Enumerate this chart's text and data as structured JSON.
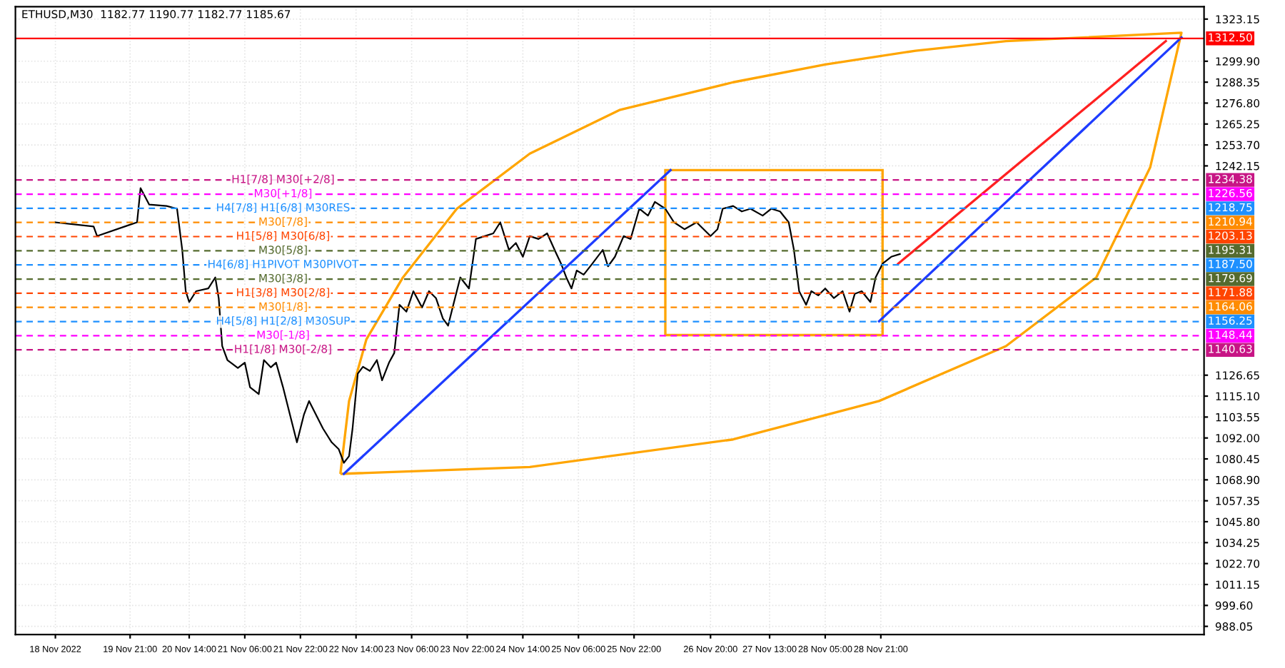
{
  "chart_data": {
    "type": "line",
    "title": "ETHUSD,M30  1182.77 1190.77 1182.77 1185.67",
    "series": [
      {
        "color": "#000000",
        "x": [
          "2022-11-18T23:30",
          "2022-11-19T10:30",
          "2022-11-19T11:30",
          "2022-11-19T20:30",
          "2022-11-19T23:00",
          "2022-11-20T00:00",
          "2022-11-20T02:30",
          "2022-11-20T07:30",
          "2022-11-20T10:30",
          "2022-11-20T12:00",
          "2022-11-20T13:00",
          "2022-11-20T14:00",
          "2022-11-20T16:00",
          "2022-11-20T19:30",
          "2022-11-20T21:30",
          "2022-11-20T22:30",
          "2022-11-20T23:30",
          "2022-11-21T01:00",
          "2022-11-21T04:00",
          "2022-11-21T06:00",
          "2022-11-21T07:30",
          "2022-11-21T10:00",
          "2022-11-21T11:30",
          "2022-11-21T13:30",
          "2022-11-21T15:00",
          "2022-11-21T17:00",
          "2022-11-21T19:00",
          "2022-11-21T21:00",
          "2022-11-21T23:00",
          "2022-11-22T00:30",
          "2022-11-22T02:30",
          "2022-11-22T04:30",
          "2022-11-22T07:00",
          "2022-11-22T09:00",
          "2022-11-22T10:30",
          "2022-11-22T12:00",
          "2022-11-22T13:00",
          "2022-11-22T14:30",
          "2022-11-22T16:00",
          "2022-11-22T18:00",
          "2022-11-22T20:00",
          "2022-11-22T21:30",
          "2022-11-22T23:30",
          "2022-11-23T01:00",
          "2022-11-23T02:30",
          "2022-11-23T04:30",
          "2022-11-23T06:30",
          "2022-11-23T09:00",
          "2022-11-23T11:00",
          "2022-11-23T13:00",
          "2022-11-23T15:00",
          "2022-11-23T16:30",
          "2022-11-23T18:00",
          "2022-11-23T20:00",
          "2022-11-23T22:30",
          "2022-11-24T00:30",
          "2022-11-24T03:00",
          "2022-11-24T05:30",
          "2022-11-24T07:30",
          "2022-11-24T10:00",
          "2022-11-24T12:00",
          "2022-11-24T14:00",
          "2022-11-24T16:00",
          "2022-11-24T18:30",
          "2022-11-24T21:00",
          "2022-11-24T23:30",
          "2022-11-25T01:00",
          "2022-11-25T02:30",
          "2022-11-25T04:00",
          "2022-11-25T05:30",
          "2022-11-25T07:30",
          "2022-11-25T10:00",
          "2022-11-25T13:00",
          "2022-11-25T14:30",
          "2022-11-25T16:30",
          "2022-11-25T19:00",
          "2022-11-25T21:00",
          "2022-11-25T23:30",
          "2022-11-26T02:00",
          "2022-11-26T04:00",
          "2022-11-26T07:00",
          "2022-11-26T09:30",
          "2022-11-26T12:30",
          "2022-11-26T16:00",
          "2022-11-26T20:00",
          "2022-11-26T22:00",
          "2022-11-26T23:30",
          "2022-11-27T02:30",
          "2022-11-27T05:00",
          "2022-11-27T07:30",
          "2022-11-27T11:00",
          "2022-11-27T13:30",
          "2022-11-27T16:00",
          "2022-11-27T18:30",
          "2022-11-27T20:00",
          "2022-11-27T21:30",
          "2022-11-27T23:30",
          "2022-11-28T01:00",
          "2022-11-28T03:00",
          "2022-11-28T05:00",
          "2022-11-28T07:30",
          "2022-11-28T10:00",
          "2022-11-28T12:00",
          "2022-11-28T13:30",
          "2022-11-28T15:30",
          "2022-11-28T18:00",
          "2022-11-28T19:30",
          "2022-11-28T21:30",
          "2022-11-29T00:00",
          "2022-11-29T02:30"
        ],
        "values": [
          1211.0,
          1208.7,
          1203.4,
          1209.4,
          1211.0,
          1229.9,
          1220.8,
          1220.0,
          1218.5,
          1195.8,
          1173.0,
          1167.0,
          1173.0,
          1174.5,
          1180.6,
          1169.0,
          1142.7,
          1135.0,
          1130.6,
          1133.6,
          1120.0,
          1116.2,
          1135.0,
          1131.0,
          1133.6,
          1120.0,
          1104.8,
          1089.6,
          1104.8,
          1112.4,
          1104.8,
          1097.2,
          1089.6,
          1085.9,
          1078.3,
          1082.0,
          1097.2,
          1127.5,
          1131.3,
          1129.0,
          1135.0,
          1123.8,
          1133.6,
          1138.9,
          1165.5,
          1161.7,
          1173.0,
          1164.0,
          1173.0,
          1169.2,
          1157.9,
          1154.0,
          1165.5,
          1180.6,
          1174.5,
          1201.8,
          1203.4,
          1204.9,
          1211.0,
          1195.8,
          1199.6,
          1192.0,
          1203.4,
          1201.8,
          1204.9,
          1194.3,
          1188.2,
          1180.6,
          1174.5,
          1184.4,
          1182.1,
          1188.2,
          1195.8,
          1186.7,
          1192.0,
          1203.4,
          1201.8,
          1218.5,
          1214.7,
          1222.3,
          1218.5,
          1211.0,
          1207.2,
          1211.0,
          1203.4,
          1207.2,
          1218.5,
          1220.0,
          1217.0,
          1218.5,
          1214.7,
          1218.5,
          1217.0,
          1211.0,
          1195.8,
          1173.0,
          1165.5,
          1173.0,
          1170.7,
          1174.5,
          1169.2,
          1173.0,
          1161.7,
          1171.5,
          1173.0,
          1167.0,
          1180.6,
          1188.2,
          1192.0,
          1193.5
        ]
      },
      {
        "color": "#1e3cff",
        "x": [
          "2022-11-22T10:30",
          "2022-11-26T08:30"
        ],
        "values": [
          1072.2,
          1239.8
        ]
      },
      {
        "color": "#1e3cff",
        "x": [
          "2022-11-28T20:30",
          "2022-12-02T11:30"
        ],
        "values": [
          1156.4,
          1313.0
        ]
      },
      {
        "color": "#ff2020",
        "x": [
          "2022-11-29T02:00",
          "2022-12-02T07:00"
        ],
        "values": [
          1188.2,
          1311.0
        ]
      }
    ],
    "xlim": [
      "2022-11-18T12:00",
      "2022-12-02T18:00"
    ],
    "xticks": [
      {
        "value": "2022-11-18T23:30",
        "label": "18 Nov 2022"
      },
      {
        "value": "2022-11-19T21:00",
        "label": "19 Nov 21:00"
      },
      {
        "value": "2022-11-20T14:00",
        "label": "20 Nov 14:00"
      },
      {
        "value": "2022-11-21T06:00",
        "label": "21 Nov 06:00"
      },
      {
        "value": "2022-11-21T22:00",
        "label": "21 Nov 22:00"
      },
      {
        "value": "2022-11-22T14:00",
        "label": "22 Nov 14:00"
      },
      {
        "value": "2022-11-23T06:00",
        "label": "23 Nov 06:00"
      },
      {
        "value": "2022-11-23T22:00",
        "label": "23 Nov 22:00"
      },
      {
        "value": "2022-11-24T14:00",
        "label": "24 Nov 14:00"
      },
      {
        "value": "2022-11-25T06:00",
        "label": "25 Nov 06:00"
      },
      {
        "value": "2022-11-25T22:00",
        "label": "25 Nov 22:00"
      },
      {
        "value": "2022-11-26T20:00",
        "label": "26 Nov 20:00"
      },
      {
        "value": "2022-11-27T13:00",
        "label": "27 Nov 13:00"
      },
      {
        "value": "2022-11-28T05:00",
        "label": "28 Nov 05:00"
      },
      {
        "value": "2022-11-28T21:00",
        "label": "28 Nov 21:00"
      }
    ],
    "ylim": [
      983.5,
      1330.0
    ],
    "yticks": [
      {
        "value": 988.05,
        "label": "988.05"
      },
      {
        "value": 999.6,
        "label": "999.60"
      },
      {
        "value": 1011.15,
        "label": "1011.15"
      },
      {
        "value": 1022.7,
        "label": "1022.70"
      },
      {
        "value": 1034.25,
        "label": "1034.25"
      },
      {
        "value": 1045.8,
        "label": "1045.80"
      },
      {
        "value": 1057.35,
        "label": "1057.35"
      },
      {
        "value": 1068.9,
        "label": "1068.90"
      },
      {
        "value": 1080.45,
        "label": "1080.45"
      },
      {
        "value": 1092.0,
        "label": "1092.00"
      },
      {
        "value": 1103.55,
        "label": "1103.55"
      },
      {
        "value": 1115.1,
        "label": "1115.10"
      },
      {
        "value": 1126.65,
        "label": "1126.65"
      },
      {
        "value": 1242.15,
        "label": "1242.15"
      },
      {
        "value": 1253.7,
        "label": "1253.70"
      },
      {
        "value": 1265.25,
        "label": "1265.25"
      },
      {
        "value": 1276.8,
        "label": "1276.80"
      },
      {
        "value": 1288.35,
        "label": "1288.35"
      },
      {
        "value": 1299.9,
        "label": "1299.90"
      },
      {
        "value": 1323.15,
        "label": "1323.15"
      }
    ],
    "ref_lines": [
      {
        "axis": "y",
        "value": 1312.5,
        "label": "1312.50",
        "color": "#ff0000",
        "line_style": "solid"
      },
      {
        "axis": "y",
        "value": 1234.38,
        "label": "1234.38",
        "color": "#c71585",
        "line_style": "dashed"
      },
      {
        "axis": "y",
        "value": 1226.56,
        "label": "1226.56",
        "color": "#ff00ff",
        "line_style": "dashed"
      },
      {
        "axis": "y",
        "value": 1218.75,
        "label": "1218.75",
        "color": "#1e90ff",
        "line_style": "dashed"
      },
      {
        "axis": "y",
        "value": 1210.94,
        "label": "1210.94",
        "color": "#ff8c00",
        "line_style": "dashed"
      },
      {
        "axis": "y",
        "value": 1203.13,
        "label": "1203.13",
        "color": "#ff4500",
        "line_style": "dashed"
      },
      {
        "axis": "y",
        "value": 1195.31,
        "label": "1195.31",
        "color": "#556b2f",
        "line_style": "dashed"
      },
      {
        "axis": "y",
        "value": 1187.5,
        "label": "1187.50",
        "color": "#1e90ff",
        "line_style": "dashed"
      },
      {
        "axis": "y",
        "value": 1179.69,
        "label": "1179.69",
        "color": "#556b2f",
        "line_style": "dashed"
      },
      {
        "axis": "y",
        "value": 1171.88,
        "label": "1171.88",
        "color": "#ff4500",
        "line_style": "dashed"
      },
      {
        "axis": "y",
        "value": 1164.06,
        "label": "1164.06",
        "color": "#ff8c00",
        "line_style": "dashed"
      },
      {
        "axis": "y",
        "value": 1156.25,
        "label": "1156.25",
        "color": "#1e90ff",
        "line_style": "dashed"
      },
      {
        "axis": "y",
        "value": 1148.44,
        "label": "1148.44",
        "color": "#ff00ff",
        "line_style": "dashed"
      },
      {
        "axis": "y",
        "value": 1140.63,
        "label": "1140.63",
        "color": "#c71585",
        "line_style": "dashed"
      }
    ],
    "annotations": [
      {
        "text": "H1[7/8] M30[+2/8]",
        "x": "2022-11-21T17:00",
        "y": 1234.38
      },
      {
        "text": "M30[+1/8]",
        "x": "2022-11-21T17:00",
        "y": 1226.56
      },
      {
        "text": "H4[7/8] H1[6/8] M30RES",
        "x": "2022-11-21T17:00",
        "y": 1218.75
      },
      {
        "text": "M30[7/8]",
        "x": "2022-11-21T17:00",
        "y": 1210.94
      },
      {
        "text": "H1[5/8] M30[6/8]",
        "x": "2022-11-21T17:00",
        "y": 1203.13
      },
      {
        "text": "M30[5/8]",
        "x": "2022-11-21T17:00",
        "y": 1195.31
      },
      {
        "text": "H4[6/8] H1PIVOT M30PIVOT",
        "x": "2022-11-21T17:00",
        "y": 1187.5
      },
      {
        "text": "M30[3/8]",
        "x": "2022-11-21T17:00",
        "y": 1179.69
      },
      {
        "text": "H1[3/8] M30[2/8]",
        "x": "2022-11-21T17:00",
        "y": 1171.88
      },
      {
        "text": "M30[1/8]",
        "x": "2022-11-21T17:00",
        "y": 1164.06
      },
      {
        "text": "H4[5/8] H1[2/8] M30SUP",
        "x": "2022-11-21T17:00",
        "y": 1156.25
      },
      {
        "text": "M30[-1/8]",
        "x": "2022-11-21T17:00",
        "y": 1148.44
      },
      {
        "text": "H1[1/8] M30[-2/8]",
        "x": "2022-11-21T17:00",
        "y": 1140.63
      }
    ],
    "grid": true,
    "line_style": "solid",
    "marker": "none"
  }
}
